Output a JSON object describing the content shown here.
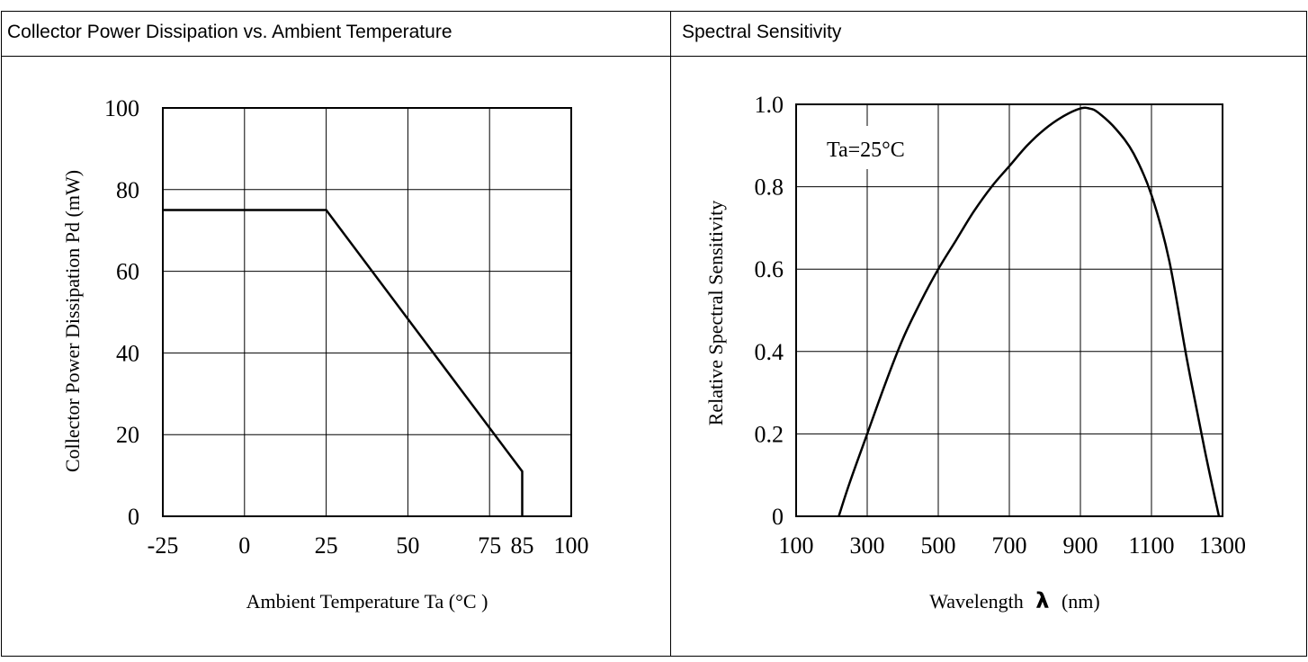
{
  "panels": [
    {
      "header": "Collector Power Dissipation vs. Ambient Temperature"
    },
    {
      "header": "Spectral Sensitivity"
    }
  ],
  "chart_data": [
    {
      "type": "line",
      "title": "Collector Power Dissipation vs. Ambient Temperature",
      "xlabel": "Ambient Temperature Ta (°C )",
      "ylabel": "Collector Power Dissipation Pd (mW)",
      "xlim": [
        -25,
        100
      ],
      "ylim": [
        0,
        100
      ],
      "x_ticks": [
        -25,
        0,
        25,
        50,
        75,
        85,
        100
      ],
      "x_tick_labels": [
        "-25",
        "0",
        "25",
        "50",
        "75",
        "85",
        "100"
      ],
      "y_ticks": [
        0,
        20,
        40,
        60,
        80,
        100
      ],
      "y_tick_labels": [
        "0",
        "20",
        "40",
        "60",
        "80",
        "100"
      ],
      "x_grid": [
        -25,
        0,
        25,
        50,
        75,
        100
      ],
      "y_grid": [
        0,
        20,
        40,
        60,
        80,
        100
      ],
      "grid": true,
      "series": [
        {
          "x": [
            -25,
            25,
            85,
            85
          ],
          "y": [
            75,
            75,
            11,
            0
          ]
        }
      ]
    },
    {
      "type": "line",
      "title": "Spectral Sensitivity",
      "xlabel": "Wavelength",
      "xlabel_symbol": "λ",
      "xlabel_unit": "(nm)",
      "ylabel": "Relative Spectral Sensitivity",
      "annotation": "Ta=25°C",
      "xlim": [
        100,
        1300
      ],
      "ylim": [
        0,
        1.0
      ],
      "x_ticks": [
        100,
        300,
        500,
        700,
        900,
        1100,
        1300
      ],
      "x_tick_labels": [
        "100",
        "300",
        "500",
        "700",
        "900",
        "1100",
        "1300"
      ],
      "y_ticks": [
        0,
        0.2,
        0.4,
        0.6,
        0.8,
        1.0
      ],
      "y_tick_labels": [
        "0",
        "0.2",
        "0.4",
        "0.6",
        "0.8",
        "1.0"
      ],
      "grid": true,
      "series": [
        {
          "x": [
            220,
            250,
            300,
            350,
            400,
            450,
            500,
            550,
            600,
            650,
            700,
            750,
            800,
            850,
            900,
            925,
            950,
            1000,
            1050,
            1100,
            1150,
            1200,
            1250,
            1290
          ],
          "y": [
            0.0,
            0.08,
            0.2,
            0.32,
            0.43,
            0.52,
            0.6,
            0.67,
            0.74,
            0.8,
            0.85,
            0.9,
            0.94,
            0.97,
            0.99,
            0.99,
            0.98,
            0.94,
            0.88,
            0.78,
            0.62,
            0.38,
            0.16,
            0.0
          ]
        }
      ]
    }
  ]
}
